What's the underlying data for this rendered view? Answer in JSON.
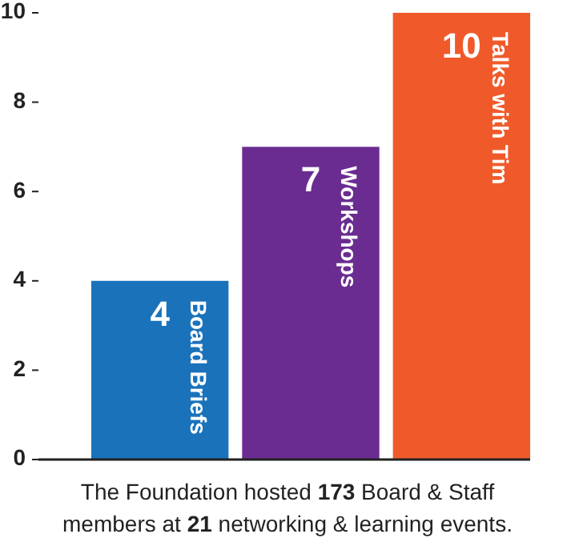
{
  "chart_data": {
    "type": "bar",
    "categories": [
      "Board Briefs",
      "Workshops",
      "Talks with Tim"
    ],
    "values": [
      4,
      7,
      10
    ],
    "colors": [
      "#1a72bb",
      "#6a2c91",
      "#f05a2a"
    ],
    "ylim": [
      0,
      10
    ],
    "yticks": [
      0,
      2,
      4,
      6,
      8,
      10
    ],
    "data_labels": true,
    "annotations": [
      "The Foundation hosted 173 Board & Staff members at 21 networking & learning events."
    ]
  }
}
